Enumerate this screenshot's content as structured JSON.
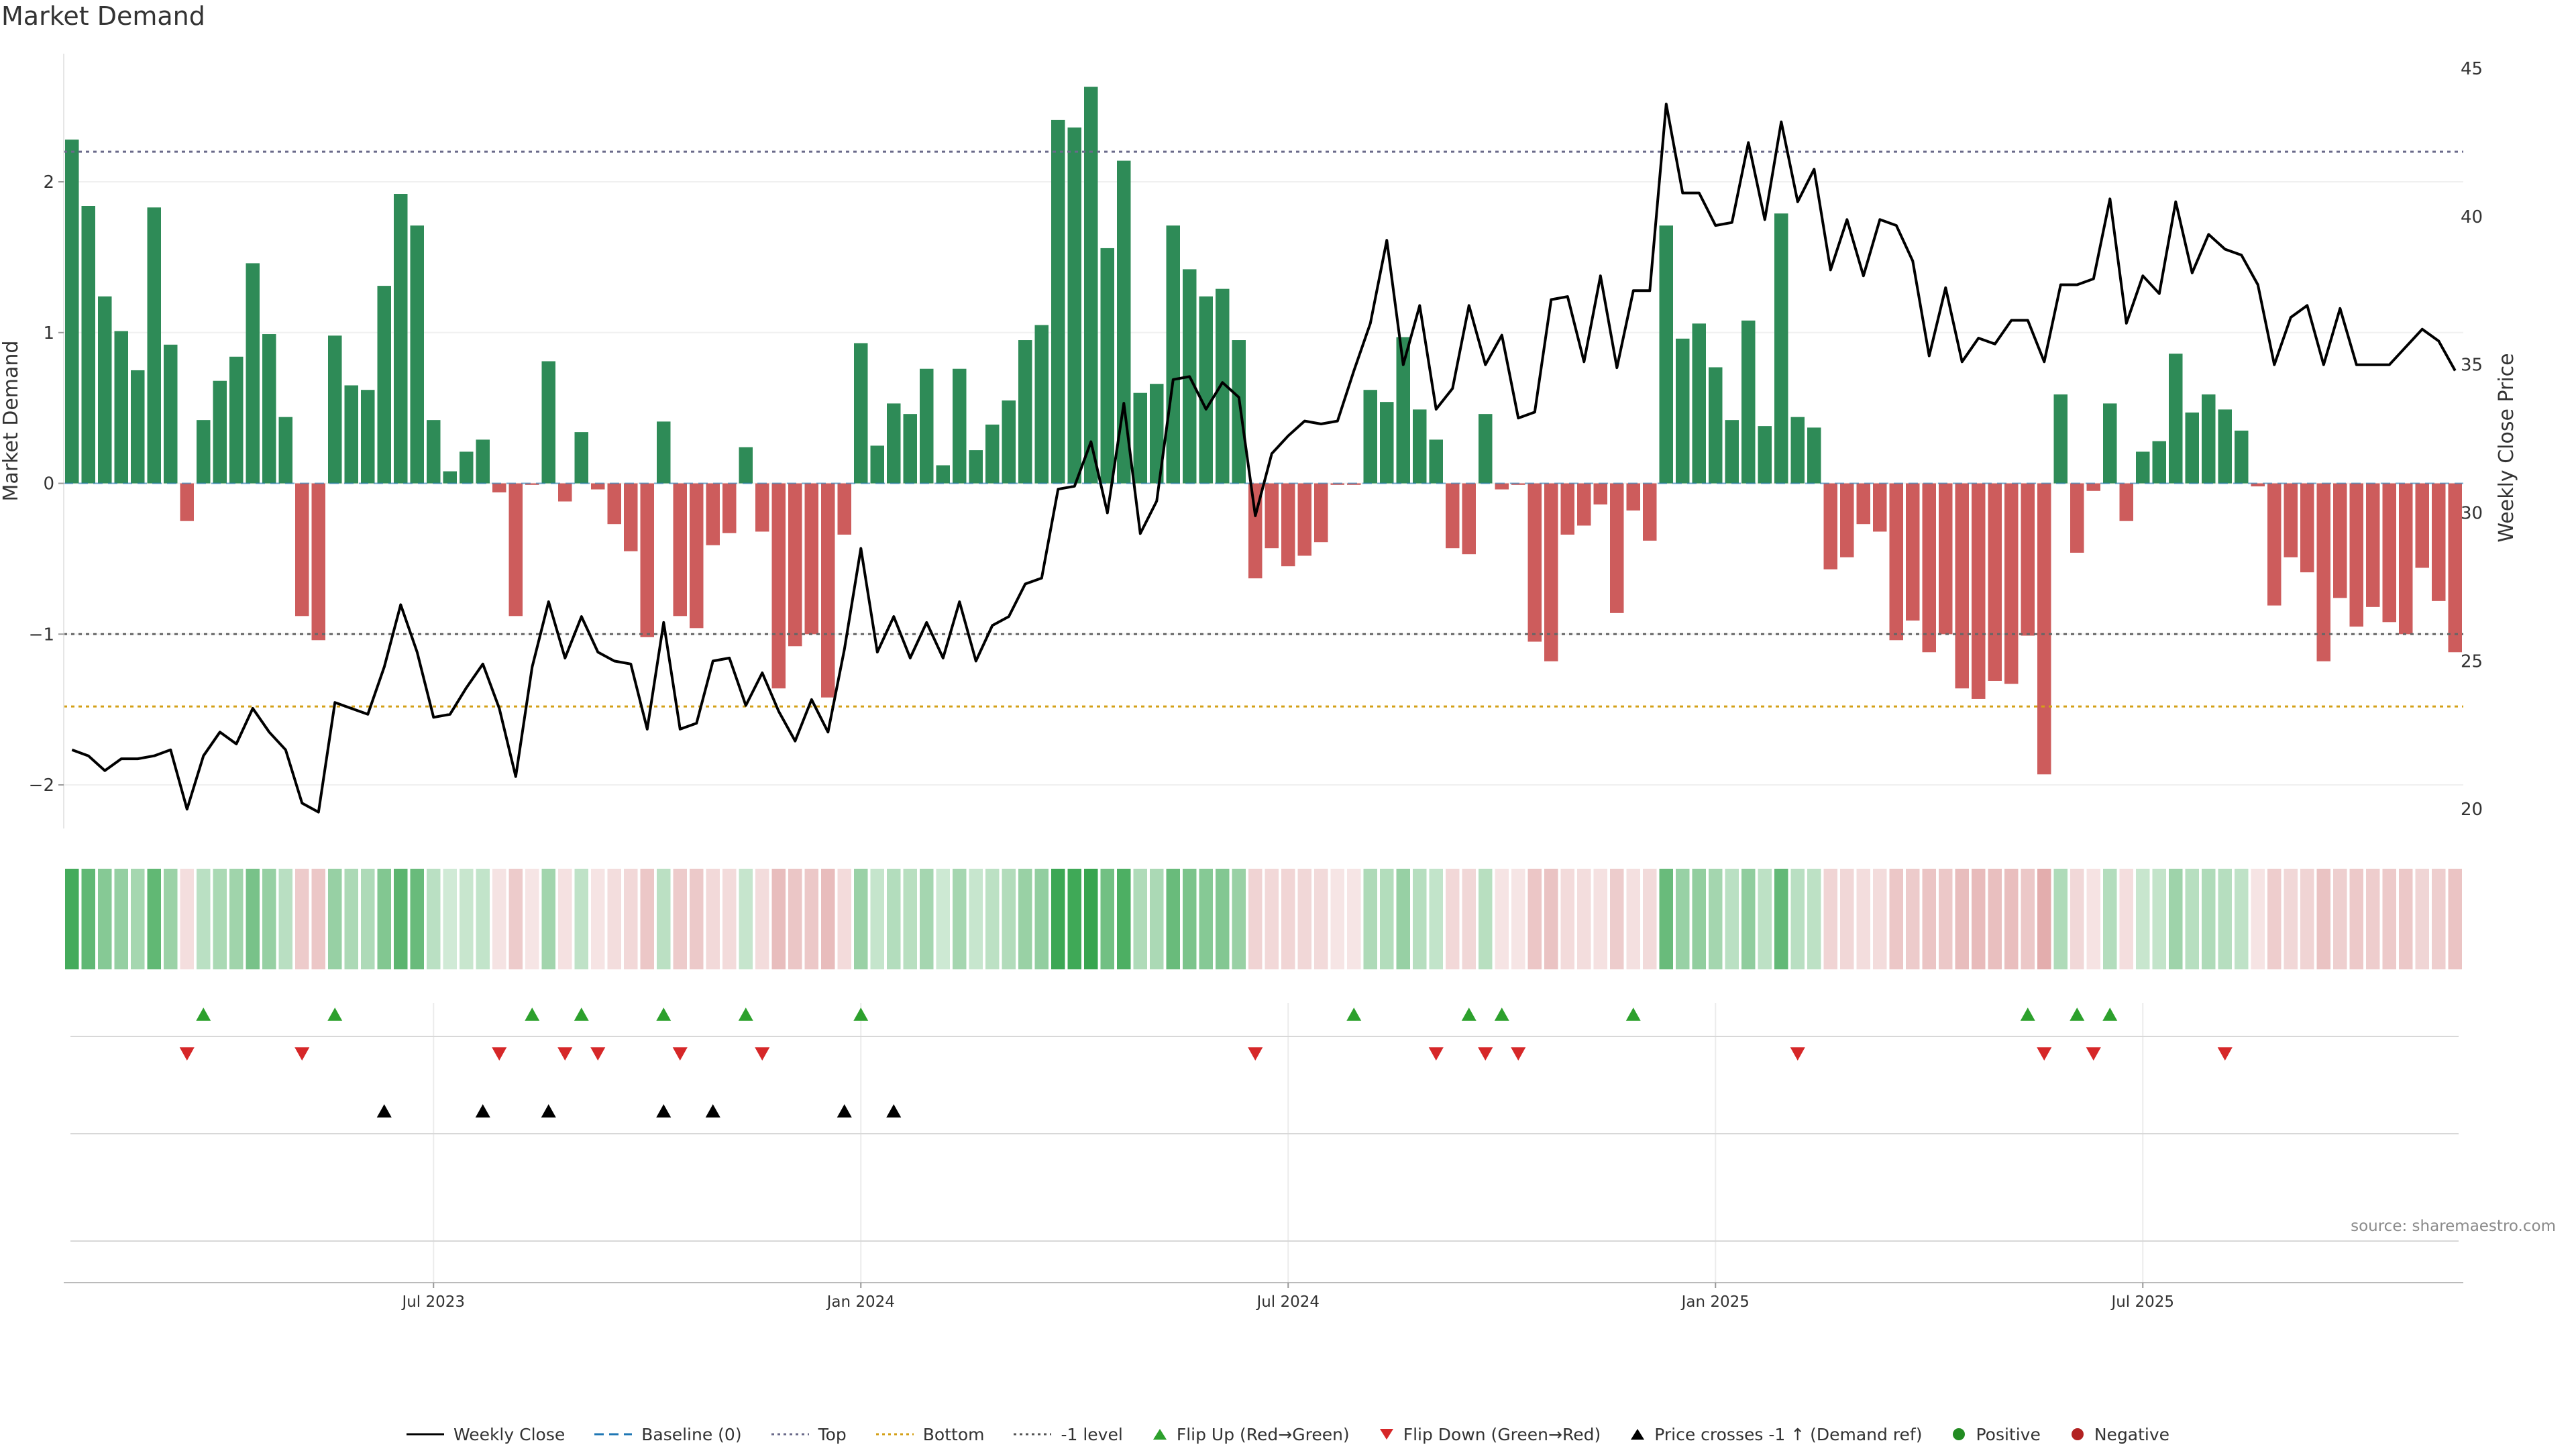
{
  "title": "Market Demand",
  "source": "source: sharemaestro.com",
  "colors": {
    "positive": "#2e8b57",
    "negative": "#cd5c5c",
    "price": "#000000",
    "top_line": "#6a6a8a",
    "bottom_line": "#d4a017",
    "flip_up": "#2ca02c",
    "flip_down": "#d62728",
    "cross": "#000000"
  },
  "legend": [
    {
      "label": "Weekly Close",
      "symbol": "line-solid",
      "color": "#000000"
    },
    {
      "label": "Baseline (0)",
      "symbol": "line-dash",
      "color": "#1f77b4"
    },
    {
      "label": "Top",
      "symbol": "line-dot",
      "color": "#6a6a8a"
    },
    {
      "label": "Bottom",
      "symbol": "line-dot",
      "color": "#d4a017"
    },
    {
      "label": "-1 level",
      "symbol": "line-dot",
      "color": "#555555"
    },
    {
      "label": "Flip Up (Red→Green)",
      "symbol": "triangle-up",
      "color": "#2ca02c"
    },
    {
      "label": "Flip Down (Green→Red)",
      "symbol": "triangle-down",
      "color": "#d62728"
    },
    {
      "label": "Price crosses -1 ↑ (Demand ref)",
      "symbol": "triangle-up",
      "color": "#000000"
    },
    {
      "label": "Positive",
      "symbol": "dot",
      "color": "#228b22"
    },
    {
      "label": "Negative",
      "symbol": "dot",
      "color": "#b22222"
    }
  ],
  "chart_data": {
    "type": "bar",
    "title": "Market Demand",
    "ylabel": "Market Demand",
    "y2label": "Weekly Close Price",
    "ylim": [
      -2.2,
      2.85
    ],
    "y2lim": [
      19.8,
      45.5
    ],
    "yticks": [
      -2,
      -1,
      0,
      1,
      2
    ],
    "ytick_labels": [
      "−2",
      "−1",
      "0",
      "1",
      "2"
    ],
    "y2ticks": [
      20,
      25,
      30,
      35,
      40,
      45
    ],
    "levels": {
      "top": 2.2,
      "bottom": -1.48,
      "minus_one": -1.0,
      "baseline": 0
    },
    "x_week_range": [
      0,
      144
    ],
    "xticks": [
      {
        "week": 22,
        "label": "Jul 2023"
      },
      {
        "week": 48,
        "label": "Jan 2024"
      },
      {
        "week": 74,
        "label": "Jul 2024"
      },
      {
        "week": 100,
        "label": "Jan 2025"
      },
      {
        "week": 126,
        "label": "Jul 2025"
      }
    ],
    "demand": [
      2.28,
      1.84,
      1.24,
      1.01,
      0.75,
      1.83,
      0.92,
      -0.25,
      0.42,
      0.68,
      0.84,
      1.46,
      0.99,
      0.44,
      -0.88,
      -1.04,
      0.98,
      0.65,
      0.62,
      1.31,
      1.92,
      1.71,
      0.42,
      0.08,
      0.21,
      0.29,
      -0.06,
      -0.88,
      -0.01,
      0.81,
      -0.12,
      0.34,
      -0.04,
      -0.27,
      -0.45,
      -1.02,
      0.41,
      -0.88,
      -0.96,
      -0.41,
      -0.33,
      0.24,
      -0.32,
      -1.36,
      -1.08,
      -1.0,
      -1.42,
      -0.34,
      0.93,
      0.25,
      0.53,
      0.46,
      0.76,
      0.12,
      0.76,
      0.22,
      0.39,
      0.55,
      0.95,
      1.05,
      2.41,
      2.36,
      2.63,
      1.56,
      2.14,
      0.6,
      0.66,
      1.71,
      1.42,
      1.24,
      1.29,
      0.95,
      -0.63,
      -0.43,
      -0.55,
      -0.48,
      -0.39,
      -0.01,
      -0.01,
      0.62,
      0.54,
      0.97,
      0.49,
      0.29,
      -0.43,
      -0.47,
      0.46,
      -0.04,
      -0.01,
      -1.05,
      -1.18,
      -0.34,
      -0.28,
      -0.14,
      -0.86,
      -0.18,
      -0.38,
      1.71,
      0.96,
      1.06,
      0.77,
      0.42,
      1.08,
      0.38,
      1.79,
      0.44,
      0.37,
      -0.57,
      -0.49,
      -0.27,
      -0.32,
      -1.04,
      -0.91,
      -1.12,
      -1.0,
      -1.36,
      -1.43,
      -1.31,
      -1.33,
      -1.01,
      -1.93,
      0.59,
      -0.46,
      -0.05,
      0.53,
      -0.25,
      0.21,
      0.28,
      0.86,
      0.47,
      0.59,
      0.49,
      0.35,
      -0.02,
      -0.81,
      -0.49,
      -0.59,
      -1.18,
      -0.76,
      -0.95,
      -0.82,
      -0.92,
      -1.0,
      -0.56,
      -0.78,
      -1.12
    ],
    "price": [
      22.0,
      21.8,
      21.3,
      21.7,
      21.7,
      21.8,
      22.0,
      20.0,
      21.8,
      22.6,
      22.2,
      23.4,
      22.6,
      22.0,
      20.2,
      19.9,
      23.6,
      23.4,
      23.2,
      24.8,
      26.9,
      25.3,
      23.1,
      23.2,
      24.1,
      24.9,
      23.4,
      21.1,
      24.8,
      27.0,
      25.1,
      26.5,
      25.3,
      25.0,
      24.9,
      22.7,
      26.3,
      22.7,
      22.9,
      25.0,
      25.1,
      23.5,
      24.6,
      23.3,
      22.3,
      23.7,
      22.6,
      25.4,
      28.8,
      25.3,
      26.5,
      25.1,
      26.3,
      25.1,
      27.0,
      25.0,
      26.2,
      26.5,
      27.6,
      27.8,
      30.8,
      30.9,
      32.4,
      30.0,
      33.7,
      29.3,
      30.4,
      34.5,
      34.6,
      33.5,
      34.4,
      33.9,
      29.9,
      32.0,
      32.6,
      33.1,
      33.0,
      33.1,
      34.8,
      36.4,
      39.2,
      35.0,
      37.0,
      33.5,
      34.2,
      37.0,
      35.0,
      36.0,
      33.2,
      33.4,
      37.2,
      37.3,
      35.1,
      38.0,
      34.9,
      37.5,
      37.5,
      43.8,
      40.8,
      40.8,
      39.7,
      39.8,
      42.5,
      39.9,
      43.2,
      40.5,
      41.6,
      38.2,
      39.9,
      38.0,
      39.9,
      39.7,
      38.5,
      35.3,
      37.6,
      35.1,
      35.9,
      35.7,
      36.5,
      36.5,
      35.1,
      37.7,
      37.7,
      37.9,
      40.6,
      36.4,
      38.0,
      37.4,
      40.5,
      38.1,
      39.4,
      38.9,
      38.7,
      37.7,
      35.0,
      36.6,
      37.0,
      35.0,
      36.9,
      35.0,
      35.0,
      35.0,
      35.6,
      36.2,
      35.8,
      34.8
    ],
    "flip_up": [
      8,
      16,
      28,
      31,
      36,
      41,
      48,
      78,
      85,
      87,
      95,
      119,
      122,
      124
    ],
    "flip_down": [
      7,
      14,
      26,
      30,
      32,
      37,
      42,
      72,
      83,
      86,
      88,
      105,
      120,
      123,
      131
    ],
    "price_cross": [
      19,
      25,
      29,
      36,
      39,
      47,
      50
    ]
  }
}
